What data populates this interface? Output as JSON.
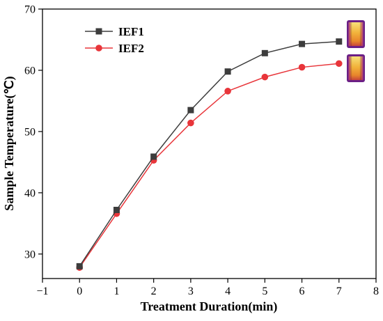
{
  "chart_data": {
    "type": "line",
    "title": "",
    "xlabel": "Treatment Duration(min)",
    "ylabel": "Sample Temperature(℃)",
    "xlim": [
      -1,
      8
    ],
    "ylim": [
      26,
      70
    ],
    "xticks": [
      -1,
      0,
      1,
      2,
      3,
      4,
      5,
      6,
      7,
      8
    ],
    "yticks": [
      30,
      40,
      50,
      60,
      70
    ],
    "x": [
      0,
      1,
      2,
      3,
      4,
      5,
      6,
      7
    ],
    "series": [
      {
        "name": "IEF1",
        "values": [
          28.0,
          37.2,
          45.9,
          53.5,
          59.8,
          62.8,
          64.3,
          64.7
        ],
        "color": "#3d3d3d",
        "marker": "square"
      },
      {
        "name": "IEF2",
        "values": [
          27.8,
          36.6,
          45.3,
          51.4,
          56.6,
          58.9,
          60.5,
          61.1
        ],
        "color": "#e8353a",
        "marker": "circle"
      }
    ],
    "legend_position": "top-left",
    "grid": false,
    "insets": [
      {
        "name": "thermal-image-ief1",
        "attached_to_series": "IEF1"
      },
      {
        "name": "thermal-image-ief2",
        "attached_to_series": "IEF2"
      }
    ]
  }
}
